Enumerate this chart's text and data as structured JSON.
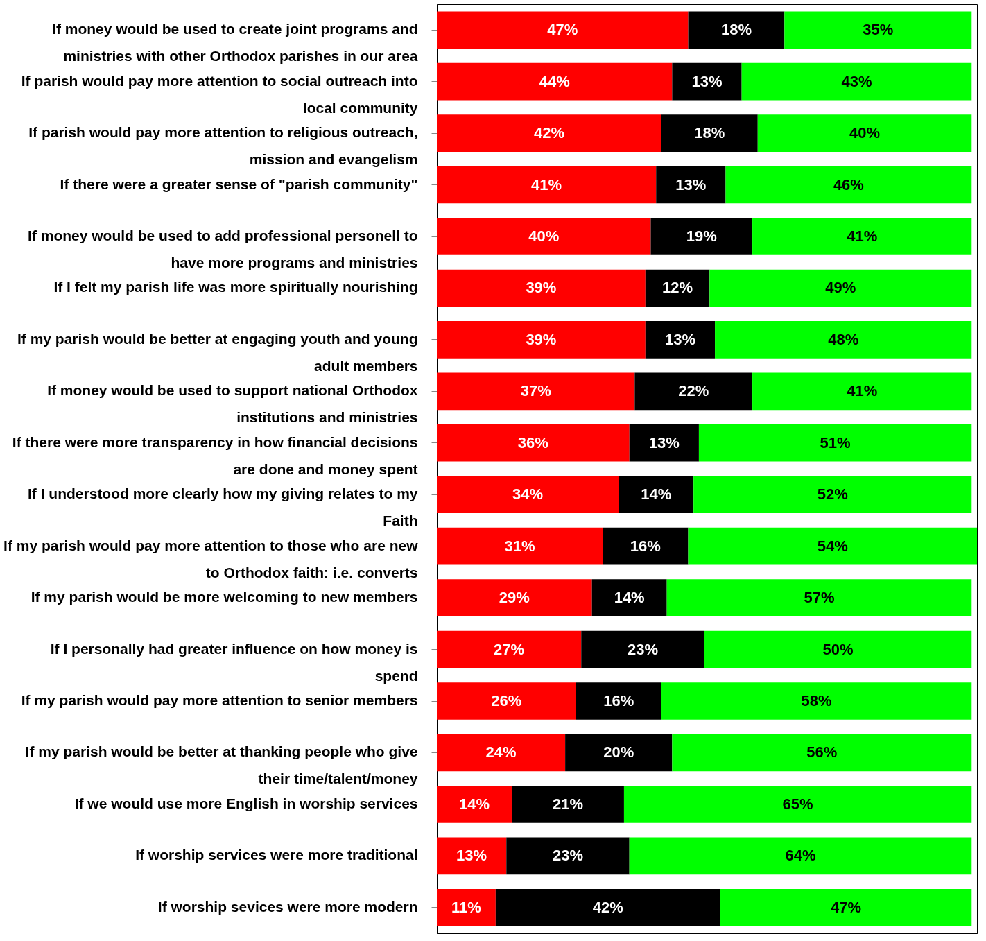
{
  "chart_data": {
    "type": "bar",
    "orientation": "horizontal",
    "stacked": true,
    "categories": [
      "If money would be used to create joint programs and ministries with other Orthodox parishes in our area",
      "If parish would pay more attention to social outreach into local community",
      "If parish would pay more attention to religious outreach, mission and evangelism",
      "If there were a greater sense of \"parish community\"",
      "If money would be used to add professional personell to have more programs and ministries",
      "If I felt my parish life was more spiritually nourishing",
      "If my parish would be better at engaging youth and young adult members",
      "If money would be used to support national Orthodox institutions and ministries",
      "If there were more transparency in how financial decisions are done and money spent",
      "If I understood more clearly how my giving relates to my Faith",
      "If my parish would pay more attention to those who are new to Orthodox faith: i.e. converts",
      "If my parish would be more welcoming to new members",
      "If I personally had greater influence on how money is spend",
      "If my parish would pay more attention to senior members",
      "If my parish would be better at thanking people who give their time/talent/money",
      "If we would use more English in worship services",
      "If worship services were more traditional",
      "If worship sevices were more modern"
    ],
    "series": [
      {
        "color": "#ff0000",
        "values": [
          47,
          44,
          42,
          41,
          40,
          39,
          39,
          37,
          36,
          34,
          31,
          29,
          27,
          26,
          24,
          14,
          13,
          11
        ],
        "value_labels": [
          "47%",
          "44%",
          "42%",
          "41%",
          "40%",
          "39%",
          "39%",
          "37%",
          "36%",
          "34%",
          "31%",
          "29%",
          "27%",
          "26%",
          "24%",
          "14%",
          "13%",
          "11%"
        ]
      },
      {
        "color": "#000000",
        "values": [
          18,
          13,
          18,
          13,
          19,
          12,
          13,
          22,
          13,
          14,
          16,
          14,
          23,
          16,
          20,
          21,
          23,
          42
        ],
        "value_labels": [
          "18%",
          "13%",
          "18%",
          "13%",
          "19%",
          "12%",
          "13%",
          "22%",
          "13%",
          "14%",
          "16%",
          "14%",
          "23%",
          "16%",
          "20%",
          "21%",
          "23%",
          "42%"
        ]
      },
      {
        "color": "#00ff00",
        "values": [
          35,
          43,
          40,
          46,
          41,
          49,
          48,
          41,
          51,
          52,
          54,
          57,
          50,
          58,
          56,
          65,
          64,
          47
        ],
        "value_labels": [
          "35%",
          "43%",
          "40%",
          "46%",
          "41%",
          "49%",
          "48%",
          "41%",
          "51%",
          "52%",
          "54%",
          "57%",
          "50%",
          "58%",
          "56%",
          "65%",
          "64%",
          "47%"
        ]
      }
    ],
    "tick_labels": "y"
  }
}
